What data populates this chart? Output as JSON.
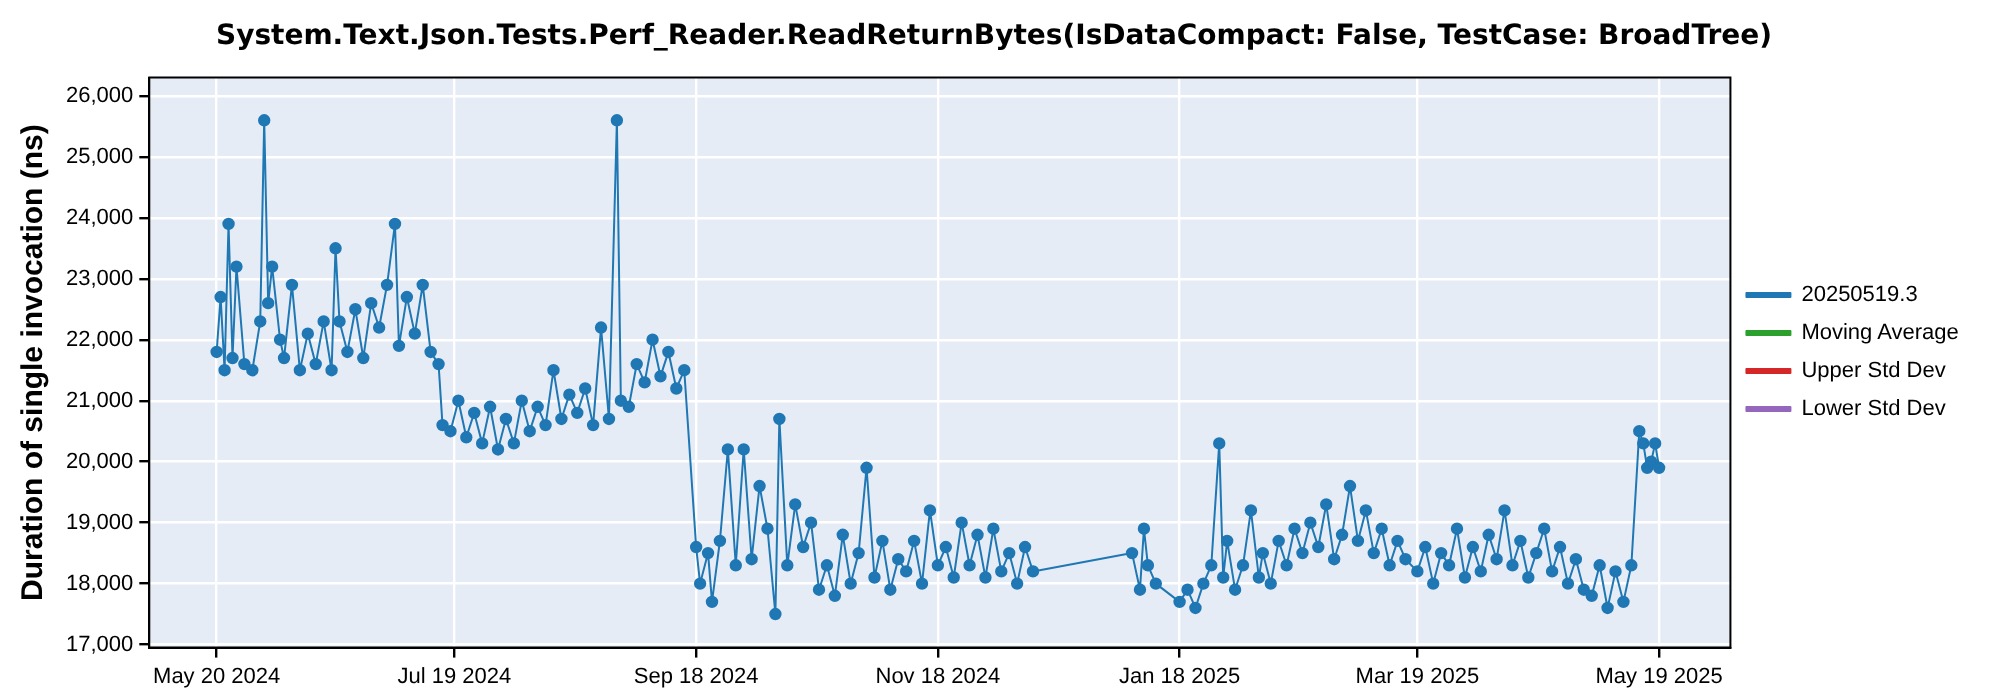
{
  "chart_data": {
    "type": "line",
    "title": "System.Text.Json.Tests.Perf_Reader.ReadReturnBytes(IsDataCompact: False, TestCase: BroadTree)",
    "ylabel": "Duration of single invocation (ns)",
    "xlim": [
      "2024-05-03",
      "2025-06-06"
    ],
    "ylim": [
      16950,
      26300
    ],
    "xticks": [
      {
        "value": "2024-05-20",
        "label": "May 20 2024"
      },
      {
        "value": "2024-07-19",
        "label": "Jul 19 2024"
      },
      {
        "value": "2024-09-18",
        "label": "Sep 18 2024"
      },
      {
        "value": "2024-11-18",
        "label": "Nov 18 2024"
      },
      {
        "value": "2025-01-18",
        "label": "Jan 18 2025"
      },
      {
        "value": "2025-03-19",
        "label": "Mar 19 2025"
      },
      {
        "value": "2025-05-19",
        "label": "May 19 2025"
      }
    ],
    "yticks": [
      {
        "value": 17000,
        "label": "17,000"
      },
      {
        "value": 18000,
        "label": "18,000"
      },
      {
        "value": 19000,
        "label": "19,000"
      },
      {
        "value": 20000,
        "label": "20,000"
      },
      {
        "value": 21000,
        "label": "21,000"
      },
      {
        "value": 22000,
        "label": "22,000"
      },
      {
        "value": 23000,
        "label": "23,000"
      },
      {
        "value": 24000,
        "label": "24,000"
      },
      {
        "value": 25000,
        "label": "25,000"
      },
      {
        "value": 26000,
        "label": "26,000"
      }
    ],
    "grid": true,
    "legend": "right",
    "marker": "circle",
    "line_style": "solid",
    "series": [
      {
        "name": "20250519.3",
        "color": "#1f77b4",
        "x": [
          "2024-05-20",
          "2024-05-21",
          "2024-05-22",
          "2024-05-23",
          "2024-05-24",
          "2024-05-25",
          "2024-05-27",
          "2024-05-29",
          "2024-05-31",
          "2024-06-01",
          "2024-06-02",
          "2024-06-03",
          "2024-06-05",
          "2024-06-06",
          "2024-06-08",
          "2024-06-10",
          "2024-06-12",
          "2024-06-14",
          "2024-06-16",
          "2024-06-18",
          "2024-06-19",
          "2024-06-20",
          "2024-06-22",
          "2024-06-24",
          "2024-06-26",
          "2024-06-28",
          "2024-06-30",
          "2024-07-02",
          "2024-07-04",
          "2024-07-05",
          "2024-07-07",
          "2024-07-09",
          "2024-07-11",
          "2024-07-13",
          "2024-07-15",
          "2024-07-16",
          "2024-07-18",
          "2024-07-20",
          "2024-07-22",
          "2024-07-24",
          "2024-07-26",
          "2024-07-28",
          "2024-07-30",
          "2024-08-01",
          "2024-08-03",
          "2024-08-05",
          "2024-08-07",
          "2024-08-09",
          "2024-08-11",
          "2024-08-13",
          "2024-08-15",
          "2024-08-17",
          "2024-08-19",
          "2024-08-21",
          "2024-08-23",
          "2024-08-25",
          "2024-08-27",
          "2024-08-29",
          "2024-08-30",
          "2024-09-01",
          "2024-09-03",
          "2024-09-05",
          "2024-09-07",
          "2024-09-09",
          "2024-09-11",
          "2024-09-13",
          "2024-09-15",
          "2024-09-18",
          "2024-09-19",
          "2024-09-21",
          "2024-09-22",
          "2024-09-24",
          "2024-09-26",
          "2024-09-28",
          "2024-09-30",
          "2024-10-02",
          "2024-10-04",
          "2024-10-06",
          "2024-10-08",
          "2024-10-09",
          "2024-10-11",
          "2024-10-13",
          "2024-10-15",
          "2024-10-17",
          "2024-10-19",
          "2024-10-21",
          "2024-10-23",
          "2024-10-25",
          "2024-10-27",
          "2024-10-29",
          "2024-10-31",
          "2024-11-02",
          "2024-11-04",
          "2024-11-06",
          "2024-11-08",
          "2024-11-10",
          "2024-11-12",
          "2024-11-14",
          "2024-11-16",
          "2024-11-18",
          "2024-11-20",
          "2024-11-22",
          "2024-11-24",
          "2024-11-26",
          "2024-11-28",
          "2024-11-30",
          "2024-12-02",
          "2024-12-04",
          "2024-12-06",
          "2024-12-08",
          "2024-12-10",
          "2024-12-12",
          "2025-01-06",
          "2025-01-08",
          "2025-01-09",
          "2025-01-10",
          "2025-01-12",
          "2025-01-18",
          "2025-01-20",
          "2025-01-22",
          "2025-01-24",
          "2025-01-26",
          "2025-01-28",
          "2025-01-29",
          "2025-01-30",
          "2025-02-01",
          "2025-02-03",
          "2025-02-05",
          "2025-02-07",
          "2025-02-08",
          "2025-02-10",
          "2025-02-12",
          "2025-02-14",
          "2025-02-16",
          "2025-02-18",
          "2025-02-20",
          "2025-02-22",
          "2025-02-24",
          "2025-02-26",
          "2025-02-28",
          "2025-03-02",
          "2025-03-04",
          "2025-03-06",
          "2025-03-08",
          "2025-03-10",
          "2025-03-12",
          "2025-03-14",
          "2025-03-16",
          "2025-03-19",
          "2025-03-21",
          "2025-03-23",
          "2025-03-25",
          "2025-03-27",
          "2025-03-29",
          "2025-03-31",
          "2025-04-02",
          "2025-04-04",
          "2025-04-06",
          "2025-04-08",
          "2025-04-10",
          "2025-04-12",
          "2025-04-14",
          "2025-04-16",
          "2025-04-18",
          "2025-04-20",
          "2025-04-22",
          "2025-04-24",
          "2025-04-26",
          "2025-04-28",
          "2025-04-30",
          "2025-05-02",
          "2025-05-04",
          "2025-05-06",
          "2025-05-08",
          "2025-05-10",
          "2025-05-12",
          "2025-05-14",
          "2025-05-15",
          "2025-05-16",
          "2025-05-17",
          "2025-05-18",
          "2025-05-19"
        ],
        "values": [
          21800,
          22700,
          21500,
          23900,
          21700,
          23200,
          21600,
          21500,
          22300,
          25600,
          22600,
          23200,
          22000,
          21700,
          22900,
          21500,
          22100,
          21600,
          22300,
          21500,
          23500,
          22300,
          21800,
          22500,
          21700,
          22600,
          22200,
          22900,
          23900,
          21900,
          22700,
          22100,
          22900,
          21800,
          21600,
          20600,
          20500,
          21000,
          20400,
          20800,
          20300,
          20900,
          20200,
          20700,
          20300,
          21000,
          20500,
          20900,
          20600,
          21500,
          20700,
          21100,
          20800,
          21200,
          20600,
          22200,
          20700,
          25600,
          21000,
          20900,
          21600,
          21300,
          22000,
          21400,
          21800,
          21200,
          21500,
          18600,
          18000,
          18500,
          17700,
          18700,
          20200,
          18300,
          20200,
          18400,
          19600,
          18900,
          17500,
          20700,
          18300,
          19300,
          18600,
          19000,
          17900,
          18300,
          17800,
          18800,
          18000,
          18500,
          19900,
          18100,
          18700,
          17900,
          18400,
          18200,
          18700,
          18000,
          19200,
          18300,
          18600,
          18100,
          19000,
          18300,
          18800,
          18100,
          18900,
          18200,
          18500,
          18000,
          18600,
          18200,
          18500,
          17900,
          18900,
          18300,
          18000,
          17700,
          17900,
          17600,
          18000,
          18300,
          20300,
          18100,
          18700,
          17900,
          18300,
          19200,
          18100,
          18500,
          18000,
          18700,
          18300,
          18900,
          18500,
          19000,
          18600,
          19300,
          18400,
          18800,
          19600,
          18700,
          19200,
          18500,
          18900,
          18300,
          18700,
          18400,
          18200,
          18600,
          18000,
          18500,
          18300,
          18900,
          18100,
          18600,
          18200,
          18800,
          18400,
          19200,
          18300,
          18700,
          18100,
          18500,
          18900,
          18200,
          18600,
          18000,
          18400,
          17900,
          17800,
          18300,
          17600,
          18200,
          17700,
          18300,
          20500,
          20300,
          19900,
          20000,
          20300,
          19900
        ]
      },
      {
        "name": "Moving Average",
        "color": "#2ca02c"
      },
      {
        "name": "Upper Std Dev",
        "color": "#d62728"
      },
      {
        "name": "Lower Std Dev",
        "color": "#9467bd"
      }
    ]
  }
}
